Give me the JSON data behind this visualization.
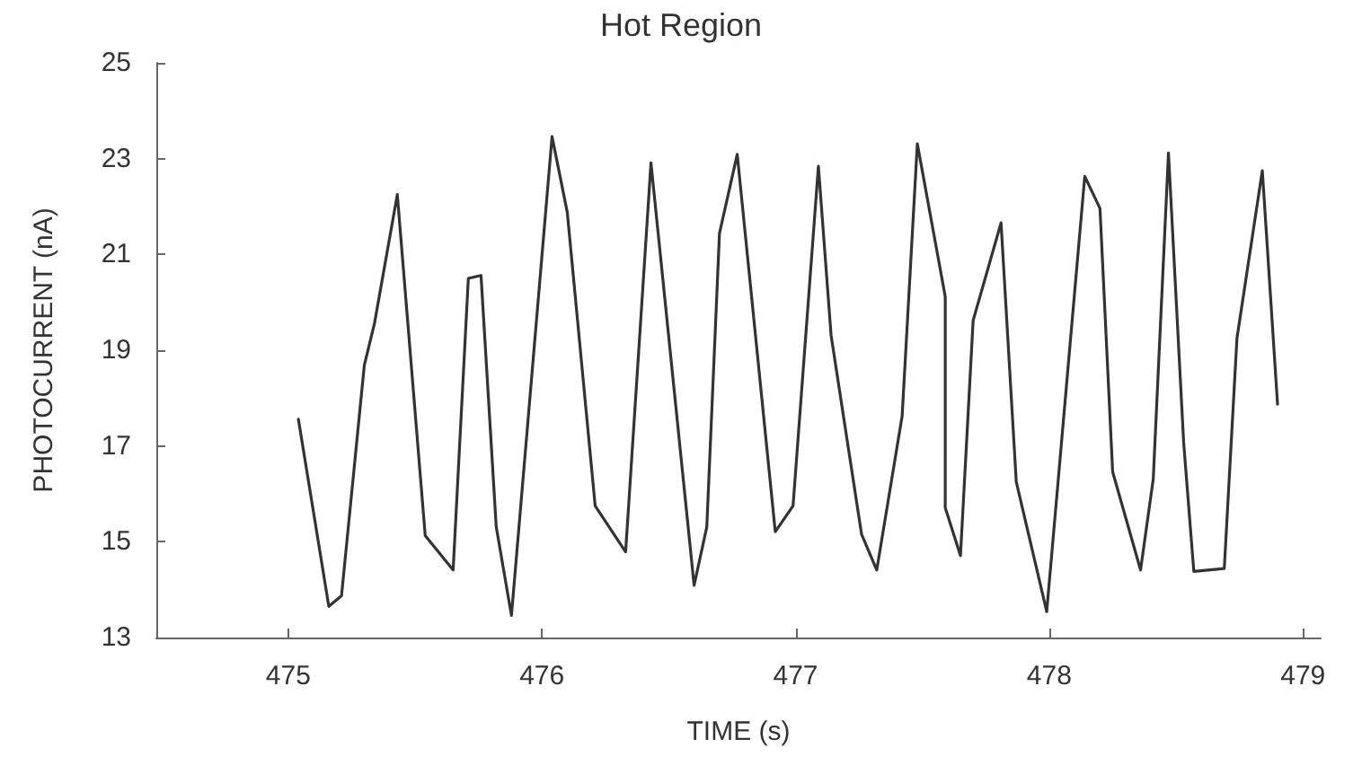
{
  "chart_data": {
    "type": "line",
    "title": "Hot Region",
    "xlabel": "TIME (s)",
    "ylabel": "PHOTOCURRENT (nA)",
    "xlim": [
      474.48,
      479.07
    ],
    "xticks": [
      475,
      476,
      477,
      478,
      479
    ],
    "ylim": [
      13,
      25
    ],
    "yticks": [
      13,
      15,
      17,
      19,
      21,
      23,
      25
    ],
    "grid": false,
    "marker": "none",
    "line_style": "solid",
    "series": [
      {
        "color": "#333333",
        "x": [
          475.04,
          475.16,
          475.21,
          475.3,
          475.34,
          475.43,
          475.54,
          475.65,
          475.71,
          475.76,
          475.82,
          475.88,
          476.04,
          476.1,
          476.21,
          476.33,
          476.43,
          476.6,
          476.65,
          476.7,
          476.77,
          476.92,
          476.99,
          477.09,
          477.14,
          477.26,
          477.32,
          477.42,
          477.48,
          477.59,
          477.59,
          477.65,
          477.7,
          477.81,
          477.87,
          477.99,
          478.14,
          478.2,
          478.25,
          478.36,
          478.41,
          478.47,
          478.53,
          478.57,
          478.69,
          478.74,
          478.84,
          478.9
        ],
        "values": [
          17.56,
          13.65,
          13.87,
          18.69,
          19.56,
          22.25,
          15.13,
          14.41,
          20.5,
          20.56,
          15.31,
          13.46,
          23.46,
          21.88,
          15.75,
          14.79,
          22.91,
          14.09,
          15.31,
          21.44,
          23.09,
          15.21,
          15.75,
          22.84,
          19.31,
          15.16,
          14.41,
          17.62,
          23.31,
          20.12,
          15.71,
          14.71,
          19.62,
          21.66,
          16.25,
          13.54,
          22.63,
          21.96,
          16.46,
          14.41,
          16.31,
          23.12,
          17.06,
          14.38,
          14.44,
          19.25,
          22.75,
          17.87
        ]
      }
    ]
  }
}
